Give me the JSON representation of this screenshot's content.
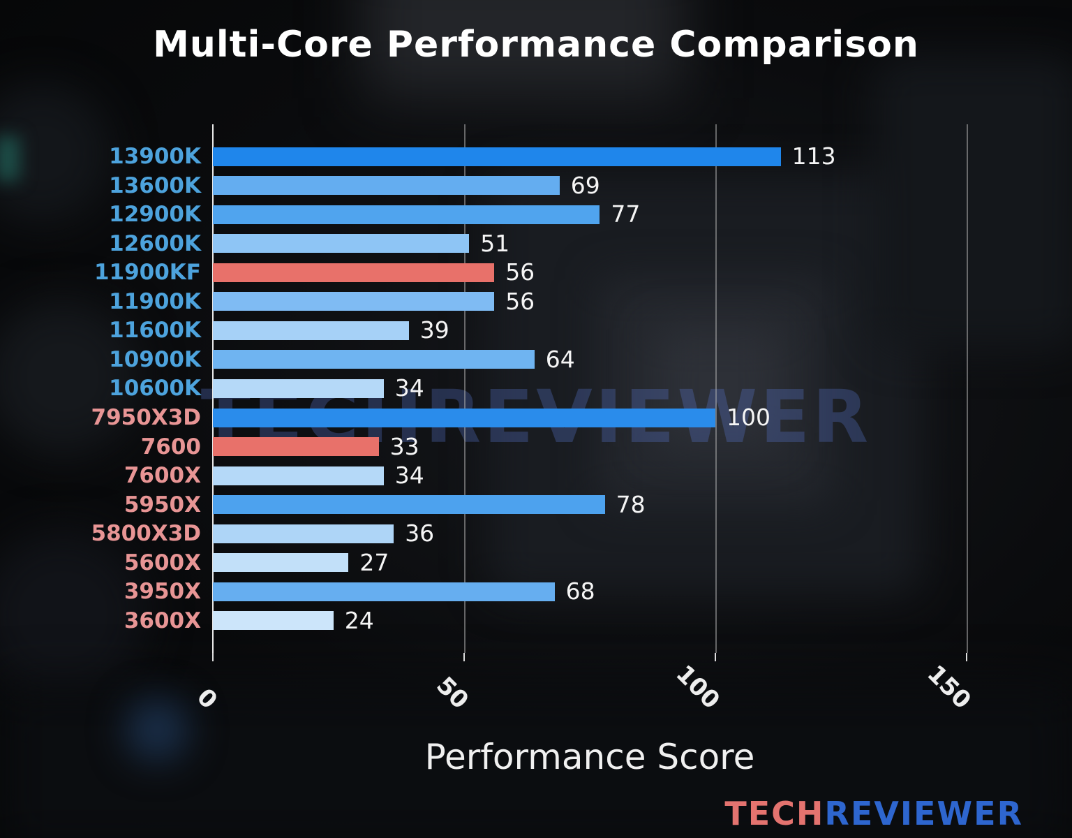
{
  "page": {
    "title": "Multi-Core Performance Comparison",
    "watermark": "TECHREVIEWER",
    "xlabel": "Performance Score",
    "logo": {
      "part1": "TECH",
      "part2": "REVIEWER"
    }
  },
  "colors": {
    "intel_label": "#4da3dd",
    "amd_label": "#e89595",
    "highlight_bar": "#e8716a",
    "value_text": "#f5f5f5",
    "gridline": "#afafaf",
    "axis_line": "#e9e9e9",
    "watermark": "#5a78d2",
    "logo_tech": "#e4736f",
    "logo_reviewer": "#2e66cf",
    "title_text": "#ffffff"
  },
  "chart_data": {
    "type": "bar",
    "orientation": "horizontal",
    "title": "Multi-Core Performance Comparison",
    "xlabel": "Performance Score",
    "ylabel": "",
    "xlim": [
      0,
      150
    ],
    "xticks": [
      0,
      50,
      100,
      150
    ],
    "grid": true,
    "legend": false,
    "categories": [
      "13900K",
      "13600K",
      "12900K",
      "12600K",
      "11900KF",
      "11900K",
      "11600K",
      "10900K",
      "10600K",
      "7950X3D",
      "7600",
      "7600X",
      "5950X",
      "5800X3D",
      "5600X",
      "3950X",
      "3600X"
    ],
    "values": [
      113,
      69,
      77,
      51,
      56,
      56,
      39,
      64,
      34,
      100,
      33,
      34,
      78,
      36,
      27,
      68,
      24
    ],
    "bars": [
      {
        "label": "13900K",
        "value": 113,
        "color": "#1f86eb",
        "label_color": "#4da3dd"
      },
      {
        "label": "13600K",
        "value": 69,
        "color": "#64adf0",
        "label_color": "#4da3dd"
      },
      {
        "label": "12900K",
        "value": 77,
        "color": "#50a4ee",
        "label_color": "#4da3dd"
      },
      {
        "label": "12600K",
        "value": 51,
        "color": "#8ec5f5",
        "label_color": "#4da3dd"
      },
      {
        "label": "11900KF",
        "value": 56,
        "color": "#e8716a",
        "label_color": "#4da3dd"
      },
      {
        "label": "11900K",
        "value": 56,
        "color": "#7fbbf3",
        "label_color": "#4da3dd"
      },
      {
        "label": "11600K",
        "value": 39,
        "color": "#a6d1f7",
        "label_color": "#4da3dd"
      },
      {
        "label": "10900K",
        "value": 64,
        "color": "#6fb4f1",
        "label_color": "#4da3dd"
      },
      {
        "label": "10600K",
        "value": 34,
        "color": "#b5d9f8",
        "label_color": "#4da3dd"
      },
      {
        "label": "7950X3D",
        "value": 100,
        "color": "#2a8ceb",
        "label_color": "#e89595"
      },
      {
        "label": "7600",
        "value": 33,
        "color": "#e8716a",
        "label_color": "#e89595"
      },
      {
        "label": "7600X",
        "value": 34,
        "color": "#b5d9f8",
        "label_color": "#e89595"
      },
      {
        "label": "5950X",
        "value": 78,
        "color": "#4da2ee",
        "label_color": "#e89595"
      },
      {
        "label": "5800X3D",
        "value": 36,
        "color": "#aed5f7",
        "label_color": "#e89595"
      },
      {
        "label": "5600X",
        "value": 27,
        "color": "#c2e0f9",
        "label_color": "#e89595"
      },
      {
        "label": "3950X",
        "value": 68,
        "color": "#66aef0",
        "label_color": "#e89595"
      },
      {
        "label": "3600X",
        "value": 24,
        "color": "#cce5fa",
        "label_color": "#e89595"
      }
    ]
  }
}
